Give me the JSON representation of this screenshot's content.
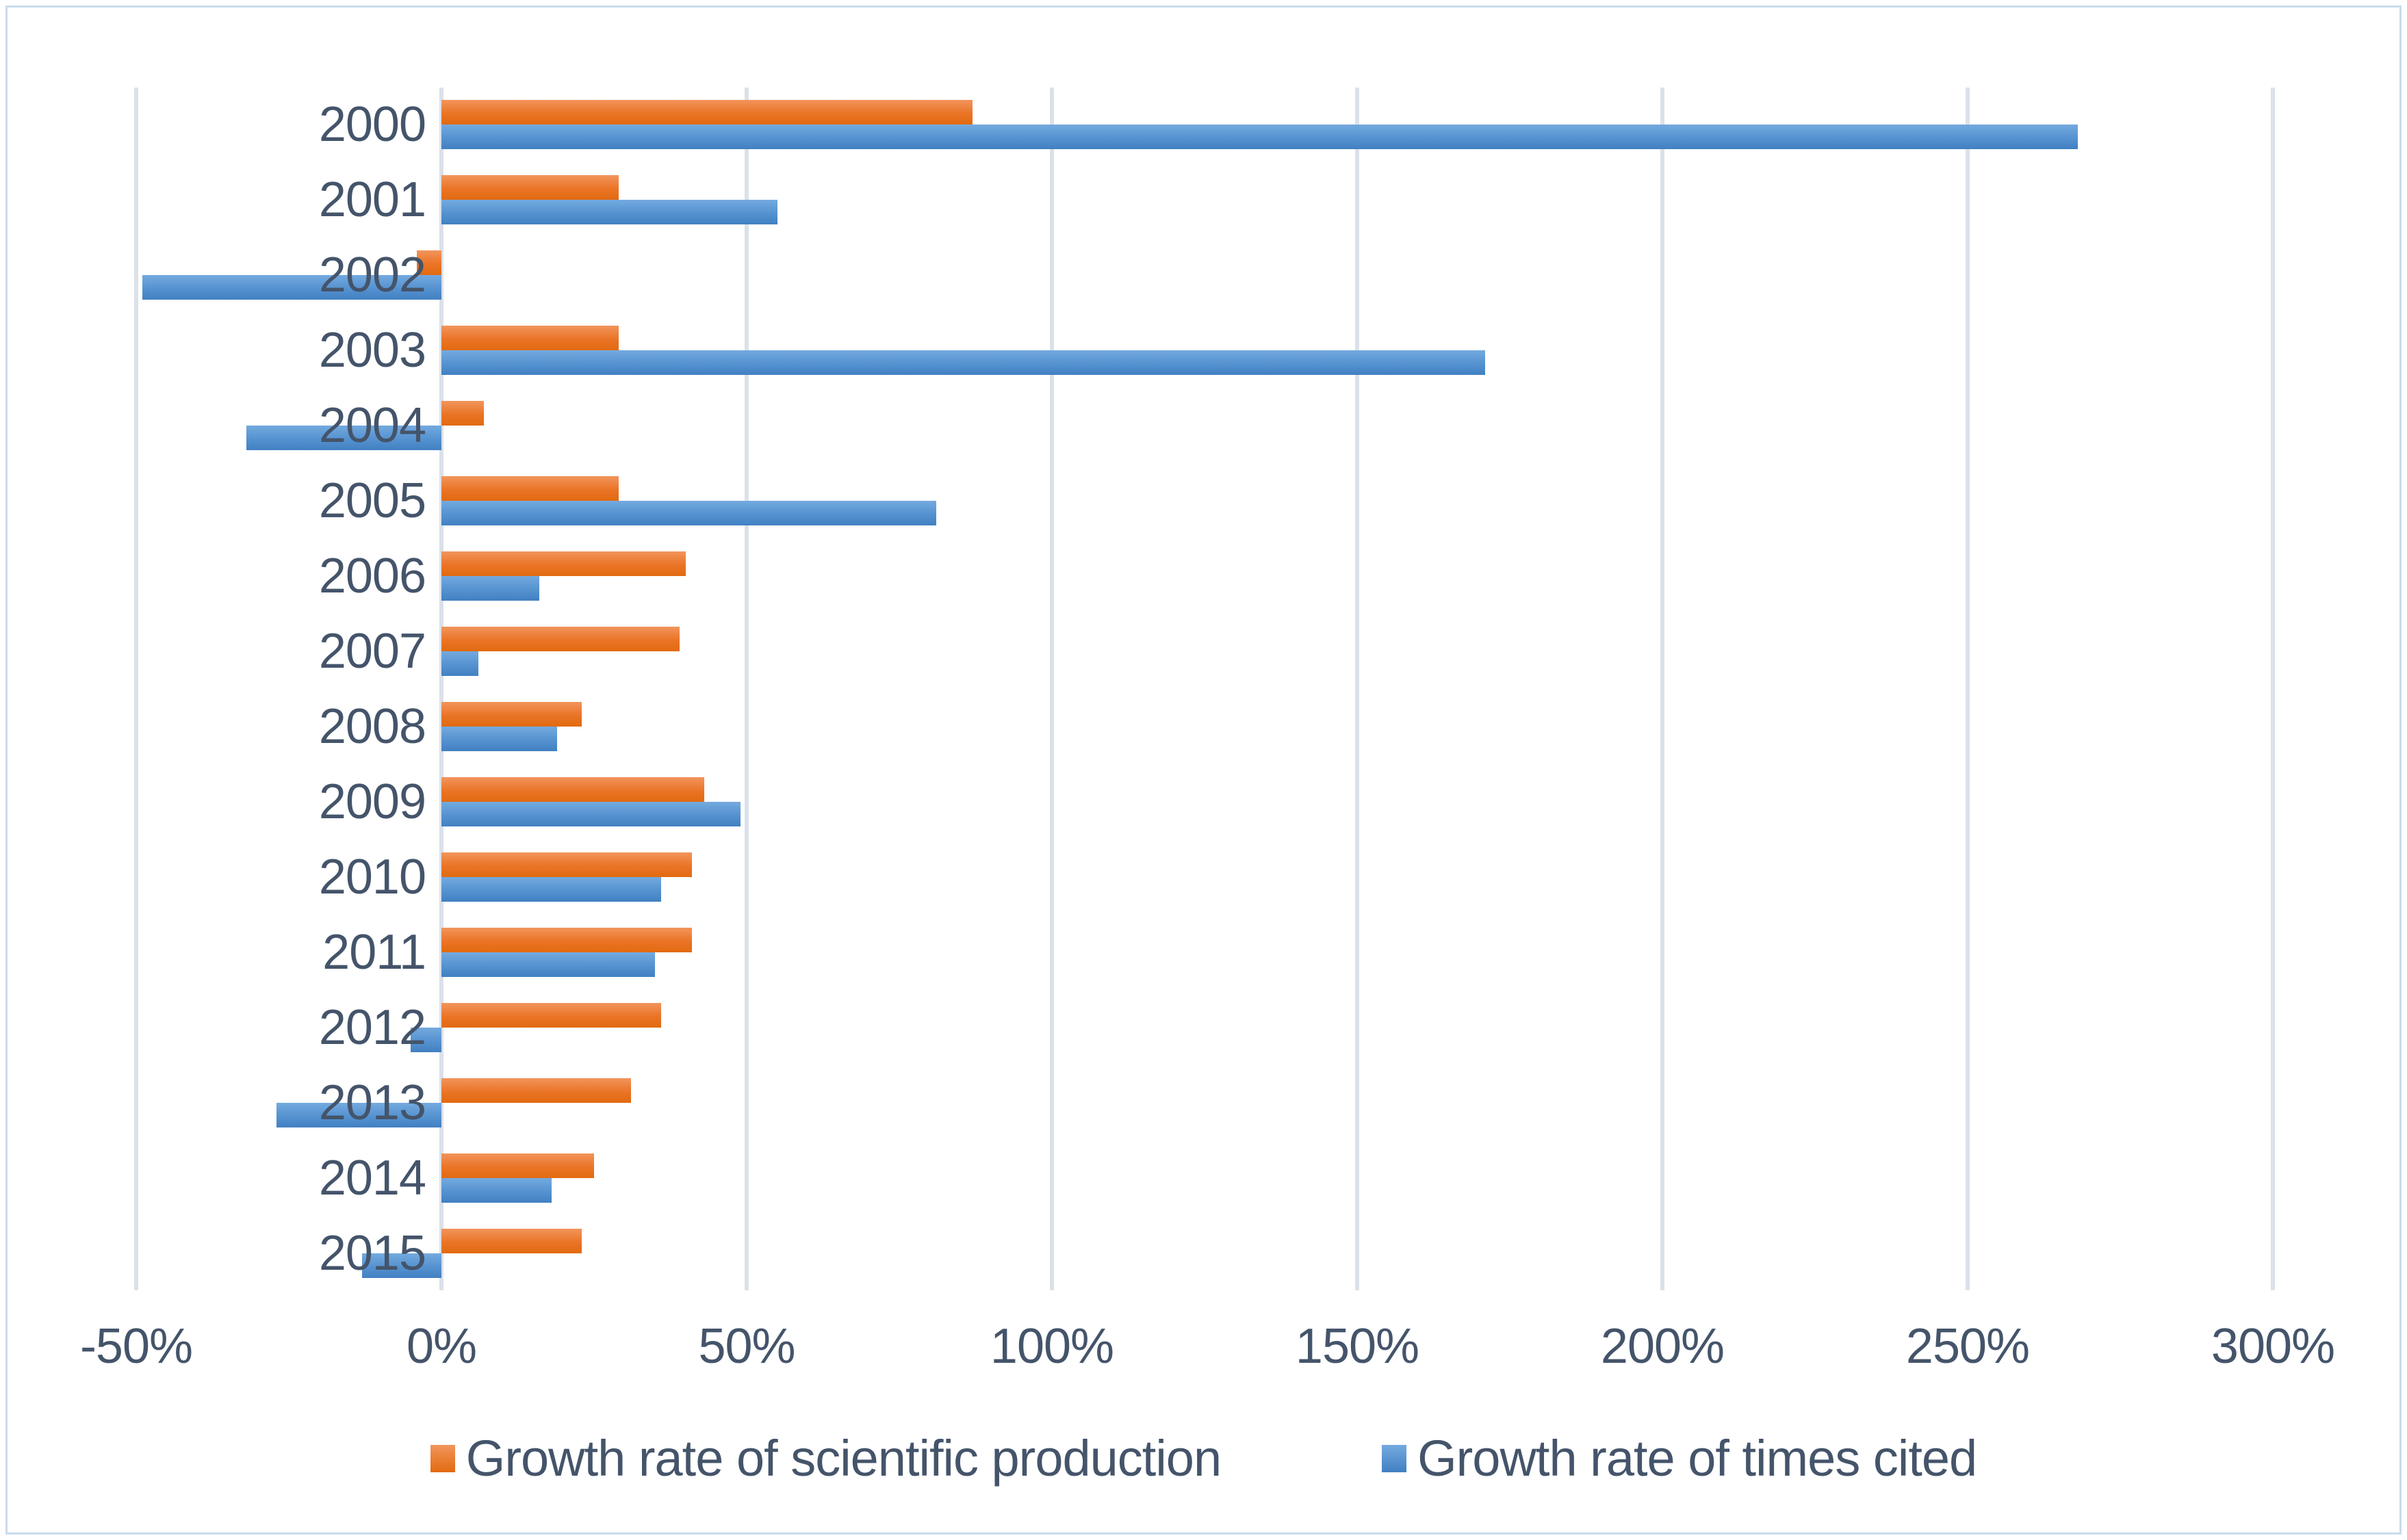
{
  "chart_data": {
    "type": "bar",
    "orientation": "horizontal",
    "title": "",
    "xlabel": "",
    "ylabel": "",
    "categories": [
      "2000",
      "2001",
      "2002",
      "2003",
      "2004",
      "2005",
      "2006",
      "2007",
      "2008",
      "2009",
      "2010",
      "2011",
      "2012",
      "2013",
      "2014",
      "2015"
    ],
    "series": [
      {
        "name": "Growth rate of scientific production",
        "color_top": "#f2955c",
        "color_bottom": "#e26a10",
        "values": [
          87,
          29,
          -4,
          29,
          7,
          29,
          40,
          39,
          23,
          43,
          41,
          41,
          36,
          31,
          25,
          23
        ]
      },
      {
        "name": "Growth rate of times cited",
        "color_top": "#74aadf",
        "color_bottom": "#4180c2",
        "values": [
          268,
          55,
          -49,
          171,
          -32,
          81,
          16,
          6,
          19,
          49,
          36,
          35,
          -5,
          -27,
          18,
          -13
        ]
      }
    ],
    "x_ticks": [
      "-50%",
      "0%",
      "50%",
      "100%",
      "150%",
      "200%",
      "250%",
      "300%"
    ],
    "x_tick_values": [
      -50,
      0,
      50,
      100,
      150,
      200,
      250,
      300
    ],
    "xlim": [
      -50,
      300
    ],
    "grid": true,
    "legend_position": "bottom",
    "text_color": "#44546a",
    "gridline_color": "#dbe1ea"
  }
}
